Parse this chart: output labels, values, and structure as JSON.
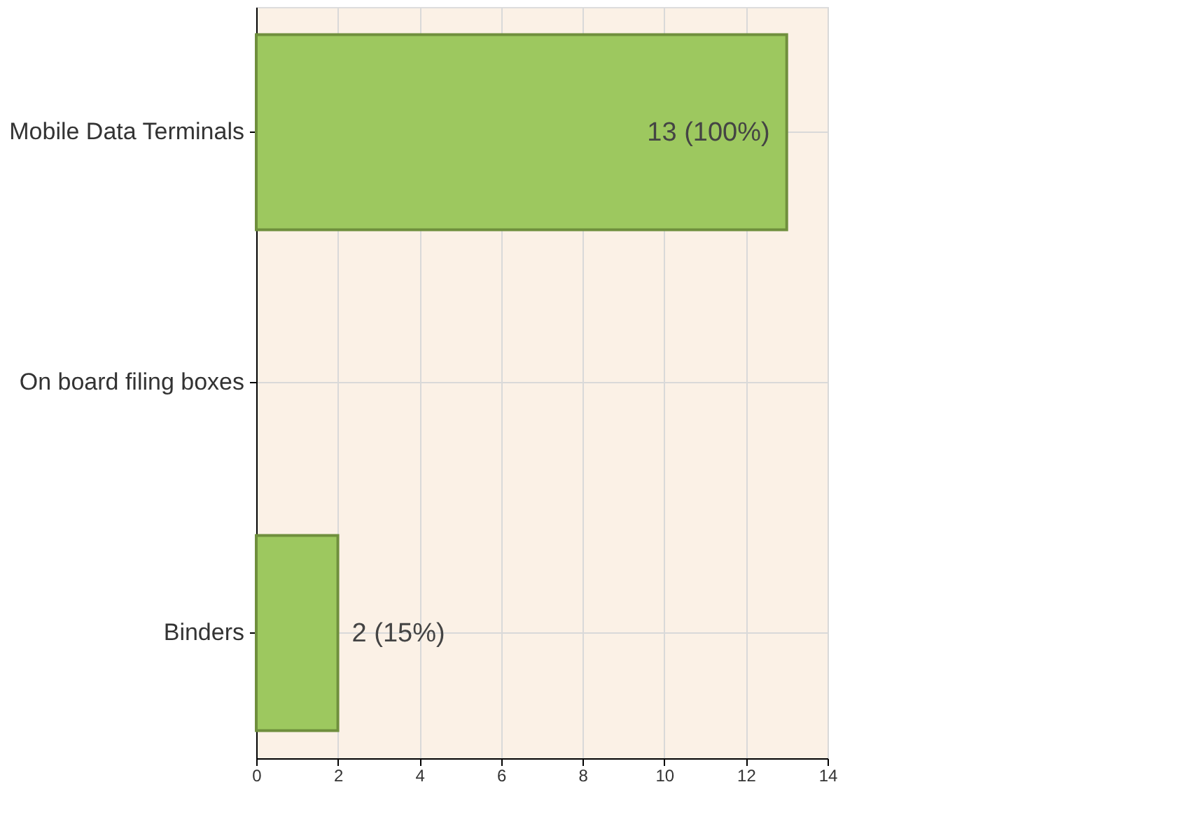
{
  "chart_data": {
    "type": "bar",
    "orientation": "horizontal",
    "categories": [
      "Mobile Data Terminals",
      "On board filing boxes",
      "Binders"
    ],
    "values": [
      13,
      0,
      2
    ],
    "value_labels": [
      "13 (100%)",
      null,
      "2 (15%)"
    ],
    "color": "#9dc85f",
    "xlim": [
      0,
      14
    ],
    "xticks": [
      0,
      2,
      4,
      6,
      8,
      10,
      12,
      14
    ],
    "grid": true
  }
}
